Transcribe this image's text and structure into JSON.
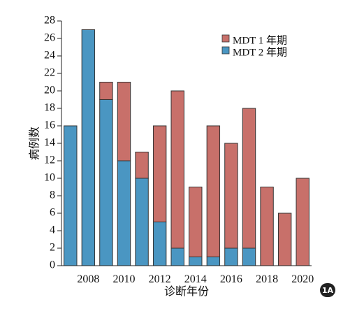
{
  "figure_label": "1A",
  "chart_data": {
    "type": "bar",
    "stacked": true,
    "categories": [
      "2007",
      "2008",
      "2009",
      "2010",
      "2011",
      "2012",
      "2013",
      "2014",
      "2015",
      "2016",
      "2017",
      "2018",
      "2019",
      "2020"
    ],
    "series": [
      {
        "name": "MDT 2 年期",
        "color": "#4a96c2",
        "values": [
          16,
          27,
          19,
          12,
          10,
          5,
          2,
          1,
          1,
          2,
          2,
          0,
          0,
          0
        ]
      },
      {
        "name": "MDT 1 年期",
        "color": "#c8706a",
        "values": [
          0,
          0,
          2,
          9,
          3,
          11,
          18,
          8,
          15,
          12,
          16,
          9,
          6,
          10
        ]
      }
    ],
    "xlabel": "诊断年份",
    "ylabel": "病例数",
    "ylim": [
      0,
      28
    ],
    "y_ticks": [
      0,
      2,
      4,
      6,
      8,
      10,
      12,
      14,
      16,
      18,
      20,
      22,
      24,
      26,
      28
    ],
    "x_tick_labels": [
      "2008",
      "2010",
      "2012",
      "2014",
      "2016",
      "2018",
      "2020"
    ],
    "legend_position": "top-right",
    "grid": false
  }
}
